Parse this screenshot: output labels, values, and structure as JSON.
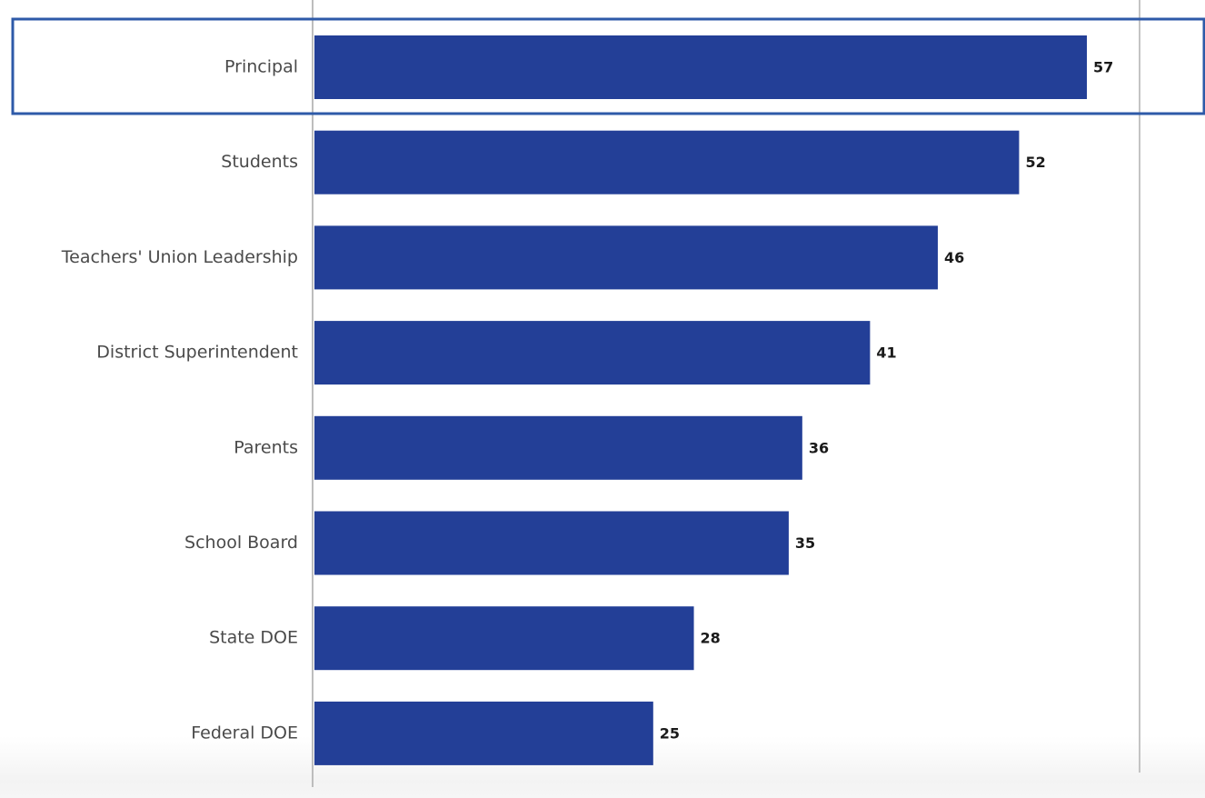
{
  "chart_data": {
    "type": "bar",
    "orientation": "horizontal",
    "categories": [
      "Principal",
      "Students",
      "Teachers' Union Leadership",
      "District Superintendent",
      "Parents",
      "School Board",
      "State DOE",
      "Federal DOE"
    ],
    "values": [
      57,
      52,
      46,
      41,
      36,
      35,
      28,
      25
    ],
    "data_labels": [
      "57",
      "52",
      "46",
      "41",
      "36",
      "35",
      "28",
      "25"
    ],
    "highlighted_category": "Principal",
    "colors": {
      "bar": "#233f97",
      "highlight_box": "#2e5aa8",
      "axis": "#bdbdbd",
      "category_text": "#4a4a4a",
      "value_text": "#1a1a1a"
    },
    "xlim": [
      0,
      57
    ],
    "grid": false,
    "legend": "none"
  }
}
